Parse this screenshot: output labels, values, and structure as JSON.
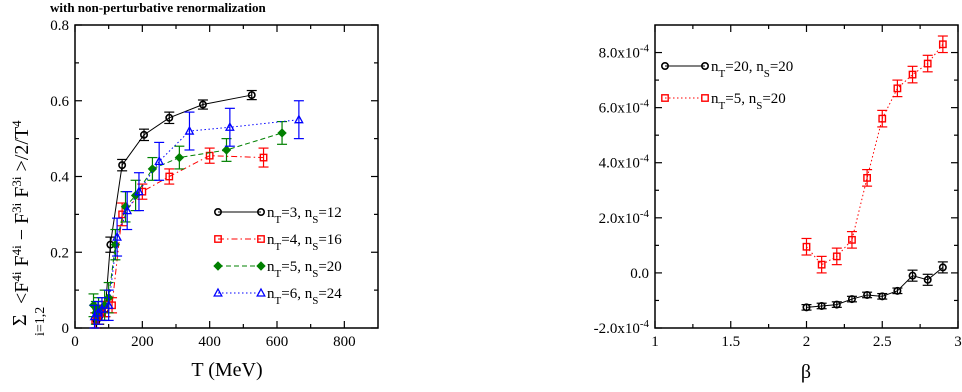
{
  "top_note": "with non-perturbative renormalization",
  "chart_data": [
    {
      "type": "scatter",
      "title": "",
      "xlabel": "T (MeV)",
      "ylabel_sum": "Σ",
      "ylabel_sub": "i=1,2",
      "ylabel_main": "<F",
      "ylabel_expr": [
        {
          "t": "4i",
          "s": "sup"
        },
        {
          "t": " F",
          "s": "n"
        },
        {
          "t": "4i",
          "s": "sup"
        },
        {
          "t": " − F",
          "s": "n"
        },
        {
          "t": "3i",
          "s": "sup"
        },
        {
          "t": " F",
          "s": "n"
        },
        {
          "t": "3i",
          "s": "sup"
        },
        {
          "t": " >/2/T",
          "s": "n"
        },
        {
          "t": "4",
          "s": "sup"
        }
      ],
      "xlim": [
        0,
        900
      ],
      "ylim": [
        0,
        0.8
      ],
      "xticks": [
        0,
        200,
        400,
        600,
        800
      ],
      "xtick_labels": [
        "0",
        "200",
        "400",
        "600",
        "800"
      ],
      "yticks": [
        0,
        0.2,
        0.4,
        0.6,
        0.8
      ],
      "ytick_labels": [
        "0",
        "0.2",
        "0.4",
        "0.6",
        "0.8"
      ],
      "legend_position": "bottom-right",
      "series": [
        {
          "name": "n_T=3, n_S=12",
          "legend": [
            {
              "t": "n",
              "s": "n"
            },
            {
              "t": "T",
              "s": "sub"
            },
            {
              "t": "=3, n",
              "s": "n"
            },
            {
              "t": "S",
              "s": "sub"
            },
            {
              "t": "=12",
              "s": "n"
            }
          ],
          "color": "#000000",
          "marker": "circle",
          "line": "solid",
          "points": [
            [
              64,
              0.02,
              0.02
            ],
            [
              72,
              0.03,
              0.02
            ],
            [
              80,
              0.04,
              0.02
            ],
            [
              90,
              0.05,
              0.02
            ],
            [
              105,
              0.22,
              0.02
            ],
            [
              140,
              0.43,
              0.015
            ],
            [
              205,
              0.51,
              0.015
            ],
            [
              280,
              0.555,
              0.015
            ],
            [
              380,
              0.59,
              0.012
            ],
            [
              525,
              0.615,
              0.012
            ]
          ]
        },
        {
          "name": "n_T=4, n_S=16",
          "legend": [
            {
              "t": "n",
              "s": "n"
            },
            {
              "t": "T",
              "s": "sub"
            },
            {
              "t": "=4, n",
              "s": "n"
            },
            {
              "t": "S",
              "s": "sub"
            },
            {
              "t": "=16",
              "s": "n"
            }
          ],
          "color": "#ff0000",
          "marker": "square",
          "line": "dashdot",
          "points": [
            [
              60,
              0.02,
              0.02
            ],
            [
              66,
              0.03,
              0.02
            ],
            [
              74,
              0.04,
              0.02
            ],
            [
              90,
              0.05,
              0.02
            ],
            [
              110,
              0.06,
              0.02
            ],
            [
              140,
              0.3,
              0.03
            ],
            [
              200,
              0.36,
              0.02
            ],
            [
              280,
              0.4,
              0.02
            ],
            [
              400,
              0.455,
              0.02
            ],
            [
              560,
              0.45,
              0.025
            ]
          ]
        },
        {
          "name": "n_T=5, n_S=20",
          "legend": [
            {
              "t": "n",
              "s": "n"
            },
            {
              "t": "T",
              "s": "sub"
            },
            {
              "t": "=5, n",
              "s": "n"
            },
            {
              "t": "S",
              "s": "sub"
            },
            {
              "t": "=20",
              "s": "n"
            }
          ],
          "color": "#008000",
          "marker": "diamond",
          "line": "dashed",
          "points": [
            [
              55,
              0.06,
              0.03
            ],
            [
              62,
              0.04,
              0.03
            ],
            [
              70,
              0.05,
              0.03
            ],
            [
              88,
              0.06,
              0.04
            ],
            [
              100,
              0.08,
              0.04
            ],
            [
              120,
              0.22,
              0.04
            ],
            [
              150,
              0.32,
              0.04
            ],
            [
              180,
              0.35,
              0.04
            ],
            [
              230,
              0.42,
              0.03
            ],
            [
              310,
              0.45,
              0.03
            ],
            [
              450,
              0.47,
              0.03
            ],
            [
              615,
              0.515,
              0.03
            ]
          ]
        },
        {
          "name": "n_T=6, n_S=24",
          "legend": [
            {
              "t": "n",
              "s": "n"
            },
            {
              "t": "T",
              "s": "sub"
            },
            {
              "t": "=6, n",
              "s": "n"
            },
            {
              "t": "S",
              "s": "sub"
            },
            {
              "t": "=24",
              "s": "n"
            }
          ],
          "color": "#0000ff",
          "marker": "triangle",
          "line": "dotted",
          "points": [
            [
              58,
              0.03,
              0.03
            ],
            [
              68,
              0.04,
              0.03
            ],
            [
              80,
              0.05,
              0.03
            ],
            [
              100,
              0.06,
              0.04
            ],
            [
              125,
              0.24,
              0.05
            ],
            [
              155,
              0.31,
              0.05
            ],
            [
              190,
              0.36,
              0.05
            ],
            [
              250,
              0.44,
              0.05
            ],
            [
              340,
              0.52,
              0.05
            ],
            [
              460,
              0.53,
              0.05
            ],
            [
              665,
              0.55,
              0.05
            ]
          ]
        }
      ]
    },
    {
      "type": "scatter",
      "title": "",
      "xlabel": "β",
      "ylabel": "",
      "xlim": [
        1,
        3
      ],
      "ylim": [
        -0.0002,
        0.0009
      ],
      "xticks": [
        1,
        1.5,
        2,
        2.5,
        3
      ],
      "xtick_labels": [
        "1",
        "1.5",
        "2",
        "2.5",
        "3"
      ],
      "yticks": [
        -0.0002,
        0,
        0.0002,
        0.0004,
        0.0006,
        0.0008
      ],
      "ytick_mantissa": [
        "-2.0x10",
        "0.0",
        "2.0x10",
        "4.0x10",
        "6.0x10",
        "8.0x10"
      ],
      "ytick_exponent": [
        "-4",
        "",
        "-4",
        "-4",
        "-4",
        "-4"
      ],
      "legend_position": "top-left",
      "series": [
        {
          "name": "n_T=20, n_S=20",
          "legend": [
            {
              "t": "n",
              "s": "n"
            },
            {
              "t": "T",
              "s": "sub"
            },
            {
              "t": "=20, n",
              "s": "n"
            },
            {
              "t": "S",
              "s": "sub"
            },
            {
              "t": "=20",
              "s": "n"
            }
          ],
          "color": "#000000",
          "marker": "circle",
          "line": "solid",
          "points": [
            [
              2.0,
              -0.000125,
              1e-05
            ],
            [
              2.1,
              -0.00012,
              1e-05
            ],
            [
              2.2,
              -0.000115,
              1e-05
            ],
            [
              2.3,
              -9.5e-05,
              1e-05
            ],
            [
              2.4,
              -8e-05,
              1e-05
            ],
            [
              2.5,
              -8.5e-05,
              1e-05
            ],
            [
              2.6,
              -6.5e-05,
              1e-05
            ],
            [
              2.7,
              -1e-05,
              2e-05
            ],
            [
              2.8,
              -2.5e-05,
              2e-05
            ],
            [
              2.9,
              2e-05,
              2e-05
            ]
          ]
        },
        {
          "name": "n_T=5, n_S=20",
          "legend": [
            {
              "t": "n",
              "s": "n"
            },
            {
              "t": "T",
              "s": "sub"
            },
            {
              "t": "=5, n",
              "s": "n"
            },
            {
              "t": "S",
              "s": "sub"
            },
            {
              "t": "=20",
              "s": "n"
            }
          ],
          "color": "#ff0000",
          "marker": "square",
          "line": "dotted",
          "points": [
            [
              2.0,
              9.5e-05,
              3e-05
            ],
            [
              2.1,
              3e-05,
              3e-05
            ],
            [
              2.2,
              6e-05,
              3e-05
            ],
            [
              2.3,
              0.00012,
              3e-05
            ],
            [
              2.4,
              0.000345,
              3e-05
            ],
            [
              2.5,
              0.00056,
              3e-05
            ],
            [
              2.6,
              0.00067,
              3e-05
            ],
            [
              2.7,
              0.00072,
              3e-05
            ],
            [
              2.8,
              0.00076,
              3e-05
            ],
            [
              2.9,
              0.00083,
              3e-05
            ]
          ]
        }
      ]
    }
  ]
}
